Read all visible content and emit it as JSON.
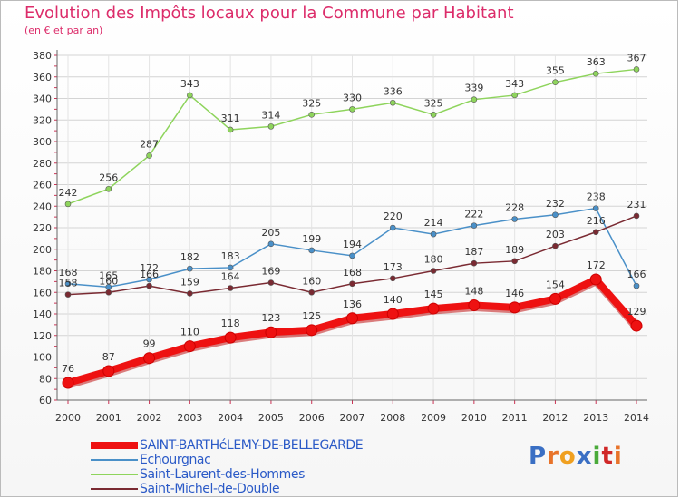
{
  "title": "Evolution des Impôts locaux pour la Commune par Habitant",
  "subtitle": "(en € et par an)",
  "logo": {
    "text": "Proxiti",
    "colors": [
      "#3a6fc4",
      "#e8732a",
      "#f0a020",
      "#3a6fc4",
      "#4aaa3a",
      "#d02828",
      "#e8732a"
    ]
  },
  "chart_data": {
    "type": "line",
    "title": "Evolution des Impôts locaux pour la Commune par Habitant",
    "subtitle": "(en € et par an)",
    "x": [
      2000,
      2001,
      2002,
      2003,
      2004,
      2005,
      2006,
      2007,
      2008,
      2009,
      2010,
      2011,
      2012,
      2013,
      2014
    ],
    "ylim": [
      60,
      380
    ],
    "yticks": [
      60,
      80,
      100,
      120,
      140,
      160,
      180,
      200,
      220,
      240,
      260,
      280,
      300,
      320,
      340,
      360,
      380
    ],
    "grid": true,
    "legend_position": "bottom-left",
    "series": [
      {
        "name": "Saint-Laurent-des-Hommes",
        "color": "#8ed45c",
        "values": [
          242,
          256,
          287,
          343,
          311,
          314,
          325,
          330,
          336,
          325,
          339,
          343,
          355,
          363,
          367
        ]
      },
      {
        "name": "Echourgnac",
        "color": "#4a90c8",
        "values": [
          168,
          165,
          172,
          182,
          183,
          205,
          199,
          194,
          220,
          214,
          222,
          228,
          232,
          238,
          166
        ]
      },
      {
        "name": "Saint-Michel-de-Double",
        "color": "#7a2a32",
        "values": [
          158,
          160,
          166,
          159,
          164,
          169,
          160,
          168,
          173,
          180,
          187,
          189,
          203,
          216,
          231
        ]
      },
      {
        "name": "SAINT-BARTHéLEMY-DE-BELLEGARDE",
        "color": "#ee1111",
        "values": [
          76,
          87,
          99,
          110,
          118,
          123,
          125,
          136,
          140,
          145,
          148,
          146,
          154,
          172,
          129
        ]
      }
    ],
    "legend_order": [
      "SAINT-BARTHéLEMY-DE-BELLEGARDE",
      "Echourgnac",
      "Saint-Laurent-des-Hommes",
      "Saint-Michel-de-Double"
    ]
  }
}
